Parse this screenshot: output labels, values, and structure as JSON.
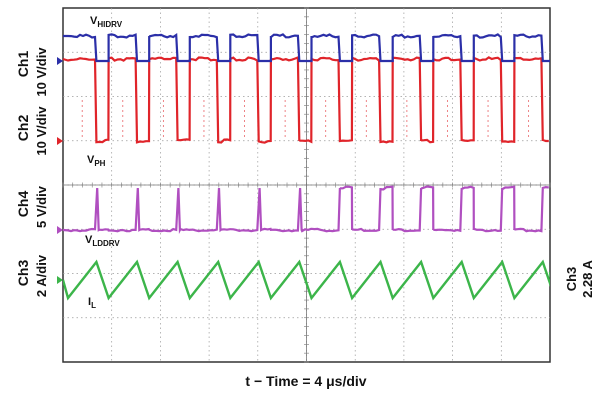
{
  "chart_data": {
    "type": "line",
    "title": "",
    "xlabel": "t − Time = 4 μs/div",
    "channels": [
      {
        "id": "Ch1",
        "label": "Ch1",
        "scale": "10 V/div",
        "color": "#2b2fa8"
      },
      {
        "id": "Ch2",
        "label": "Ch2",
        "scale": "10 V/div",
        "color": "#e0242a"
      },
      {
        "id": "Ch4",
        "label": "Ch4",
        "scale": "5 V/div",
        "color": "#b04fc0"
      },
      {
        "id": "Ch3",
        "label": "Ch3",
        "scale": "2 A/div",
        "color": "#3cb54a",
        "right_label": "Ch3",
        "right_value": "2.28 A"
      }
    ],
    "signal_labels": {
      "hidrv": {
        "main": "V",
        "sub": "HIDRV"
      },
      "ph": {
        "main": "V",
        "sub": "PH"
      },
      "lddrv": {
        "main": "V",
        "sub": "LDDRV"
      },
      "il": {
        "main": "I",
        "sub": "L"
      }
    },
    "grid": {
      "divisions_x": 10,
      "divisions_y": 8,
      "visible": true
    },
    "switching_periods_per_half": 6
  }
}
